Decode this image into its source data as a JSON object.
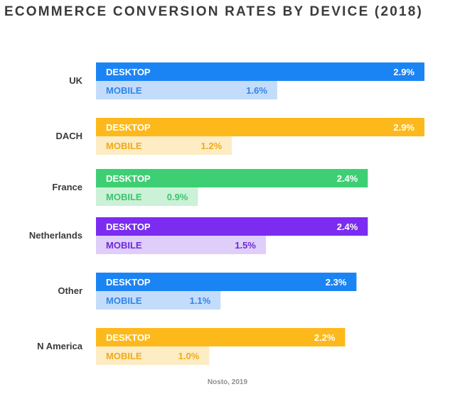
{
  "chart_data": {
    "type": "bar",
    "orientation": "horizontal",
    "title": "ECOMMERCE CONVERSION RATES BY DEVICE (2018)",
    "source": "Nosto, 2019",
    "xlim": [
      0,
      2.9
    ],
    "unit": "%",
    "categories": [
      "UK",
      "DACH",
      "France",
      "Netherlands",
      "Other",
      "N America"
    ],
    "series": [
      {
        "name": "DESKTOP",
        "values": [
          2.9,
          2.9,
          2.4,
          2.4,
          2.3,
          2.2
        ]
      },
      {
        "name": "MOBILE",
        "values": [
          1.6,
          1.2,
          0.9,
          1.5,
          1.1,
          1.0
        ]
      }
    ],
    "value_labels": {
      "DESKTOP": [
        "2.9%",
        "2.9%",
        "2.4%",
        "2.4%",
        "2.3%",
        "2.2%"
      ],
      "MOBILE": [
        "1.6%",
        "1.2%",
        "0.9%",
        "1.5%",
        "1.1%",
        "1.0%"
      ]
    },
    "colors": [
      {
        "desktop": "#1b84f5",
        "mobile": "#c4dcfb",
        "mobile_text": "#2f86e8"
      },
      {
        "desktop": "#fdb91b",
        "mobile": "#fdecc4",
        "mobile_text": "#f0aa16"
      },
      {
        "desktop": "#3ecf74",
        "mobile": "#cbf1d7",
        "mobile_text": "#3cc46c"
      },
      {
        "desktop": "#7b2cf0",
        "mobile": "#dfcdfa",
        "mobile_text": "#6d2bd8"
      },
      {
        "desktop": "#1b84f5",
        "mobile": "#c4dcfb",
        "mobile_text": "#2f86e8"
      },
      {
        "desktop": "#fdb91b",
        "mobile": "#fdecc4",
        "mobile_text": "#f0aa16"
      }
    ]
  }
}
